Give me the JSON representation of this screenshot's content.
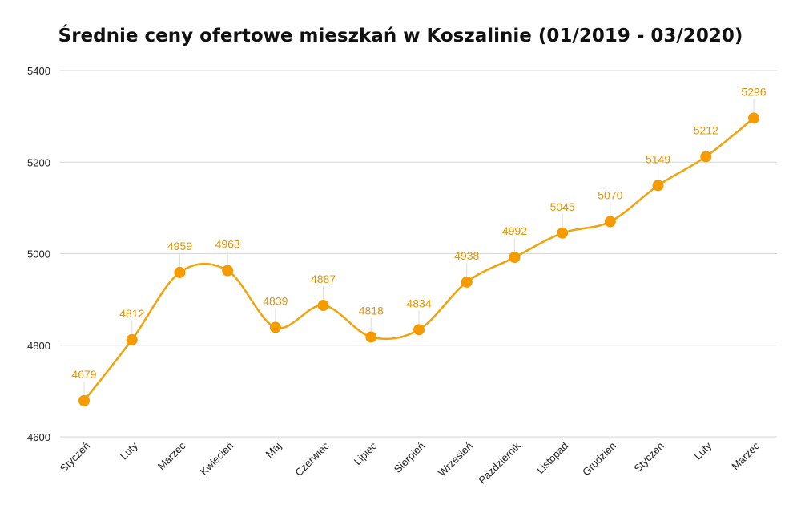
{
  "chart_data": {
    "type": "line",
    "title": "Średnie ceny ofertowe mieszkań w Koszalinie (01/2019 - 03/2020)",
    "xlabel": "",
    "ylabel": "",
    "ylim": [
      4600,
      5400
    ],
    "yticks": [
      4600,
      4800,
      5000,
      5200,
      5400
    ],
    "grid": true,
    "smooth": true,
    "categories": [
      "Styczeń",
      "Luty",
      "Marzec",
      "Kwiecień",
      "Maj",
      "Czerwiec",
      "Lipiec",
      "Sierpień",
      "Wrzesień",
      "Październik",
      "Listopad",
      "Grudzień",
      "Styczeń",
      "Luty",
      "Marzec"
    ],
    "series": [
      {
        "values": [
          4679,
          4812,
          4959,
          4963,
          4839,
          4887,
          4818,
          4834,
          4938,
          4992,
          5045,
          5070,
          5149,
          5212,
          5296
        ],
        "color": "#f59b00"
      }
    ]
  }
}
